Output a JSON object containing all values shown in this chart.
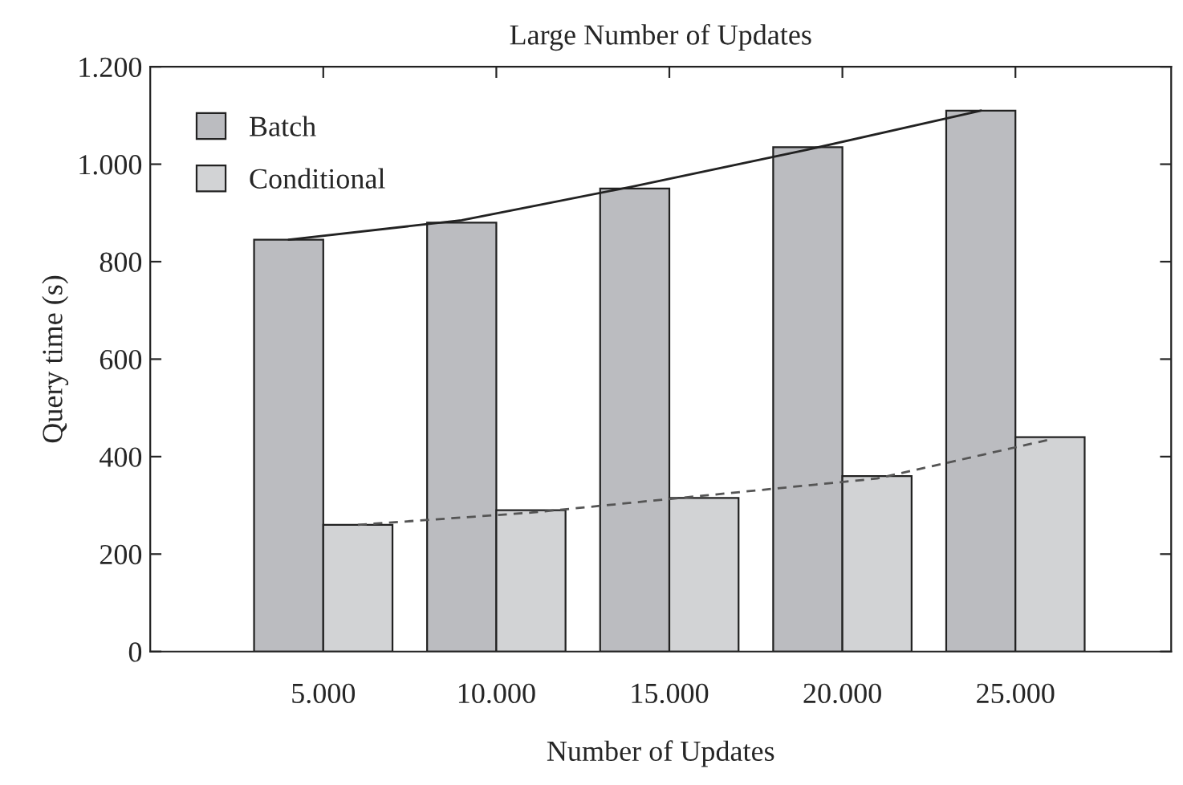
{
  "chart_data": {
    "type": "bar",
    "title": "Large Number of Updates",
    "xlabel": "Number of Updates",
    "ylabel": "Query time (s)",
    "categories": [
      "5.000",
      "10.000",
      "15.000",
      "20.000",
      "25.000"
    ],
    "series": [
      {
        "name": "Batch",
        "color": "#bbbcc0",
        "values": [
          845,
          880,
          950,
          1035,
          1110
        ]
      },
      {
        "name": "Conditional",
        "color": "#d2d3d5",
        "values": [
          260,
          290,
          315,
          360,
          440
        ]
      },
      {
        "type": "line",
        "color": "#222222",
        "line_style": "solid",
        "x": [
          "5.000",
          "10.000",
          "15.000",
          "20.000",
          "25.000"
        ],
        "values": [
          845,
          885,
          955,
          1030,
          1110
        ]
      },
      {
        "type": "line",
        "color": "#555555",
        "line_style": "dashed",
        "x": [
          "5.000",
          "10.000",
          "15.000",
          "20.000",
          "25.000"
        ],
        "values": [
          260,
          285,
          320,
          355,
          435
        ]
      }
    ],
    "ylim": [
      0,
      1200
    ],
    "yticks": [
      0,
      200,
      400,
      600,
      800,
      {
        "value": 1000,
        "label": "1.000"
      },
      {
        "value": 1200,
        "label": "1.200"
      }
    ],
    "grid": false,
    "legend": "top left",
    "marker": "none"
  }
}
